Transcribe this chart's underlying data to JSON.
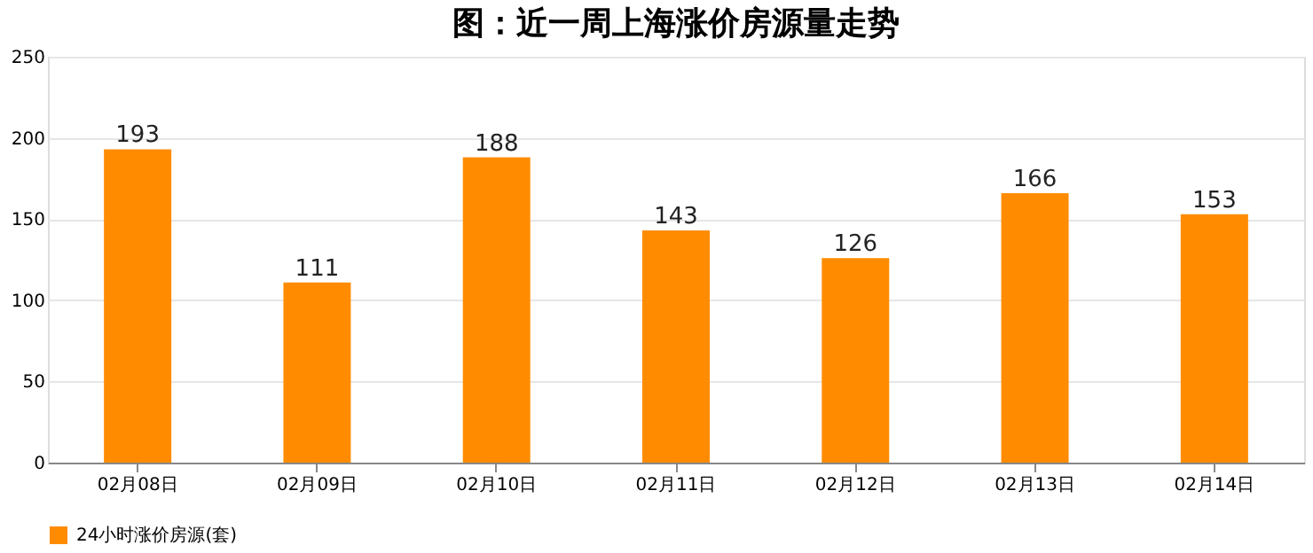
{
  "chart_data": {
    "type": "bar",
    "title": "图：近一周上海涨价房源量走势",
    "categories": [
      "02月08日",
      "02月09日",
      "02月10日",
      "02月11日",
      "02月12日",
      "02月13日",
      "02月14日"
    ],
    "series": [
      {
        "name": "24小时涨价房源(套)",
        "color": "#ff8c00",
        "values": [
          193,
          111,
          188,
          143,
          126,
          166,
          153
        ]
      }
    ],
    "ylim": [
      0,
      250
    ],
    "yticks": [
      0,
      50,
      100,
      150,
      200,
      250
    ],
    "grid": "y",
    "legend": "bottom",
    "data_labels": true
  }
}
